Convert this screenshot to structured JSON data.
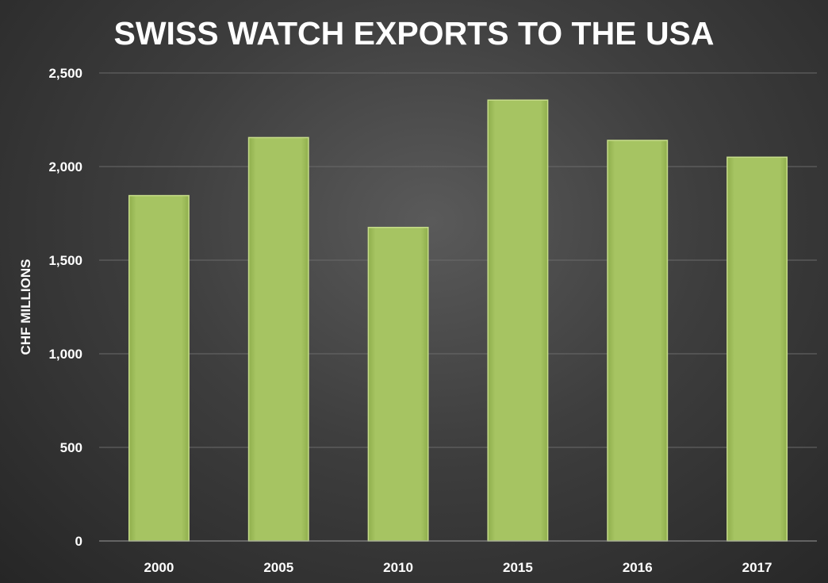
{
  "chart_data": {
    "type": "bar",
    "title": "SWISS WATCH EXPORTS TO THE USA",
    "xlabel": "",
    "ylabel": "CHF MILLIONS",
    "categories": [
      "2000",
      "2005",
      "2010",
      "2015",
      "2016",
      "2017"
    ],
    "values": [
      1845,
      2155,
      1675,
      2355,
      2140,
      2050
    ],
    "ylim": [
      0,
      2500
    ],
    "yticks": [
      0,
      500,
      1000,
      1500,
      2000,
      2500
    ],
    "ytick_labels": [
      "0",
      "500",
      "1,000",
      "1,500",
      "2,000",
      "2,500"
    ],
    "grid": true,
    "legend": "none",
    "colors": {
      "bar": "#a4c25f",
      "bar_edge": "#c7dd8a",
      "text": "#ffffff",
      "background": "#3e3e3e"
    }
  }
}
